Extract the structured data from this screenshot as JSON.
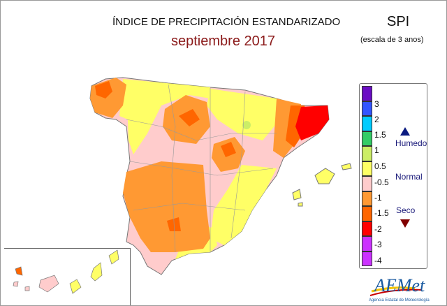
{
  "title": "ÍNDICE DE PRECIPITACIÓN ESTANDARIZADO",
  "subtitle": "septiembre 2017",
  "index": "SPI",
  "scale": "(escala de 3 anos)",
  "legend": {
    "swatches": [
      "#6a0dc4",
      "#3355ff",
      "#00ccff",
      "#33cc66",
      "#ccee66",
      "#ffff66",
      "#ffcccc",
      "#ff9933",
      "#ff6600",
      "#ff0000",
      "#cc33ff"
    ],
    "labels": [
      "3",
      "2",
      "1.5",
      "1",
      "0.5",
      "-0.5",
      "-1",
      "-1.5",
      "-2",
      "-3",
      "-4"
    ],
    "humedo": "Humedo",
    "normal": "Normal",
    "seco": "Seco",
    "humedo_color": "#0a1a80",
    "seco_color": "#800000"
  },
  "logo": {
    "name": "AEMet",
    "tagline": "Agencia Estatal de Meteorología"
  }
}
